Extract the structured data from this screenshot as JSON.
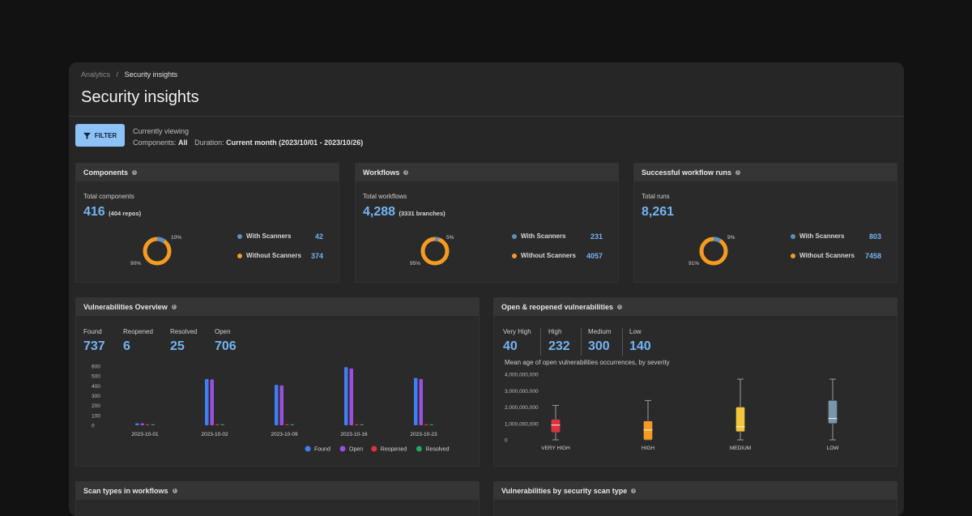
{
  "breadcrumb": {
    "parent": "Analytics",
    "separator": "/",
    "current": "Security insights"
  },
  "page_title": "Security insights",
  "filter": {
    "button_label": "FILTER",
    "viewing_label": "Currently viewing",
    "components_label": "Components:",
    "components_value": "All",
    "duration_label": "Duration:",
    "duration_value": "Current month (2023/10/01 - 2023/10/26)"
  },
  "colors": {
    "accent": "#74b3f2",
    "with_scanners": "#5b8fc2",
    "without_scanners": "#f59b21"
  },
  "summary_cards": [
    {
      "title": "Components",
      "total_label": "Total components",
      "total_value": "416",
      "total_sub": "(404 repos)",
      "with_label": "With Scanners",
      "with_value": "42",
      "without_label": "Without Scanners",
      "without_value": "374",
      "with_pct": "10%",
      "without_pct": "90%",
      "with_fraction": 0.1
    },
    {
      "title": "Workflows",
      "total_label": "Total workflows",
      "total_value": "4,288",
      "total_sub": "(3331 branches)",
      "with_label": "With Scanners",
      "with_value": "231",
      "without_label": "Without Scanners",
      "without_value": "4057",
      "with_pct": "5%",
      "without_pct": "95%",
      "with_fraction": 0.05
    },
    {
      "title": "Successful workflow runs",
      "total_label": "Total runs",
      "total_value": "8,261",
      "total_sub": "",
      "with_label": "With Scanners",
      "with_value": "803",
      "without_label": "Without Scanners",
      "without_value": "7458",
      "with_pct": "9%",
      "without_pct": "91%",
      "with_fraction": 0.09
    }
  ],
  "vuln_overview": {
    "title": "Vulnerabilities Overview",
    "stats": [
      {
        "label": "Found",
        "value": "737"
      },
      {
        "label": "Reopened",
        "value": "6"
      },
      {
        "label": "Resolved",
        "value": "25"
      },
      {
        "label": "Open",
        "value": "706"
      }
    ]
  },
  "open_vulns": {
    "title": "Open & reopened vulnerabilities",
    "stats": [
      {
        "label": "Very High",
        "value": "40"
      },
      {
        "label": "High",
        "value": "232"
      },
      {
        "label": "Medium",
        "value": "300"
      },
      {
        "label": "Low",
        "value": "140"
      }
    ],
    "chart_caption": "Mean age of open vulnerabilities occurrences, by severity"
  },
  "bottom_cards": {
    "scan_types_title": "Scan types in workflows",
    "by_scan_type_title": "Vulnerabilities by security scan type"
  },
  "chart_data": [
    {
      "type": "bar",
      "categories": [
        "2023-10-01",
        "2023-10-02",
        "2023-10-09",
        "2023-10-16",
        "2023-10-23"
      ],
      "ylim": [
        0,
        600
      ],
      "yticks": [
        "0",
        "100",
        "200",
        "300",
        "400",
        "500",
        "600"
      ],
      "series": [
        {
          "name": "Found",
          "color": "#3f7ff0",
          "values": [
            20,
            470,
            410,
            590,
            480
          ]
        },
        {
          "name": "Open",
          "color": "#9a4fe0",
          "values": [
            20,
            465,
            405,
            575,
            470
          ]
        },
        {
          "name": "Reopened",
          "color": "#e0323c",
          "values": [
            0,
            0,
            0,
            0,
            0
          ]
        },
        {
          "name": "Resolved",
          "color": "#21a85a",
          "values": [
            0,
            5,
            5,
            8,
            5
          ]
        }
      ]
    },
    {
      "type": "box",
      "categories": [
        "VERY HIGH",
        "HIGH",
        "MEDIUM",
        "LOW"
      ],
      "ylim": [
        0,
        4000000000
      ],
      "yticks": [
        "0",
        "1,000,000,000",
        "2,000,000,000",
        "3,000,000,000",
        "4,000,000,000"
      ],
      "colors": [
        "#e0323c",
        "#f59b21",
        "#f3c63a",
        "#7a96ac"
      ],
      "boxes": [
        {
          "min": 0,
          "q1": 450000000,
          "median": 900000000,
          "q3": 1250000000,
          "max": 2100000000
        },
        {
          "min": 0,
          "q1": 0,
          "median": 600000000,
          "q3": 1150000000,
          "max": 2400000000
        },
        {
          "min": 0,
          "q1": 500000000,
          "median": 800000000,
          "q3": 2000000000,
          "max": 3700000000
        },
        {
          "min": 0,
          "q1": 1000000000,
          "median": 1300000000,
          "q3": 2400000000,
          "max": 3700000000
        }
      ]
    }
  ]
}
